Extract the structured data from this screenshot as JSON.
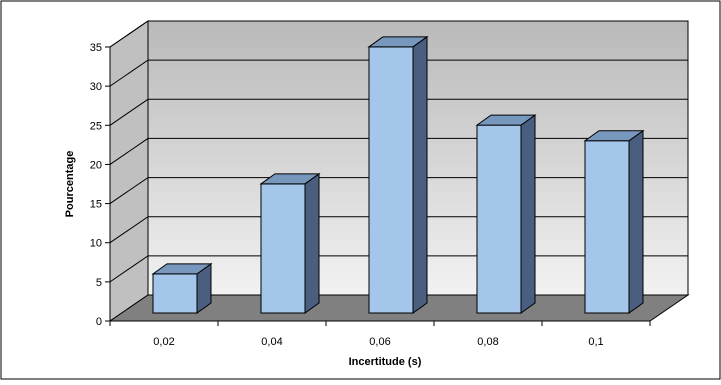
{
  "chart_data": {
    "type": "bar",
    "style": "3d-column",
    "categories": [
      "0,02",
      "0,04",
      "0,06",
      "0,08",
      "0,1"
    ],
    "values": [
      5,
      16.5,
      34,
      24,
      22
    ],
    "xlabel": "Incertitude (s)",
    "ylabel": "Pourcentage",
    "ylim": [
      0,
      35
    ],
    "yticks": [
      0,
      5,
      10,
      15,
      20,
      25,
      30,
      35
    ],
    "ytick_labels": [
      "0",
      "5",
      "10",
      "15",
      "20",
      "25",
      "30",
      "35"
    ],
    "grid": true,
    "legend": "none",
    "colors": {
      "bar_front": "#a4c6ea",
      "bar_top": "#7797bd",
      "bar_side": "#4a5e80",
      "wall": "#c0c0c0",
      "floor": "#808080",
      "outline": "#000000"
    }
  }
}
